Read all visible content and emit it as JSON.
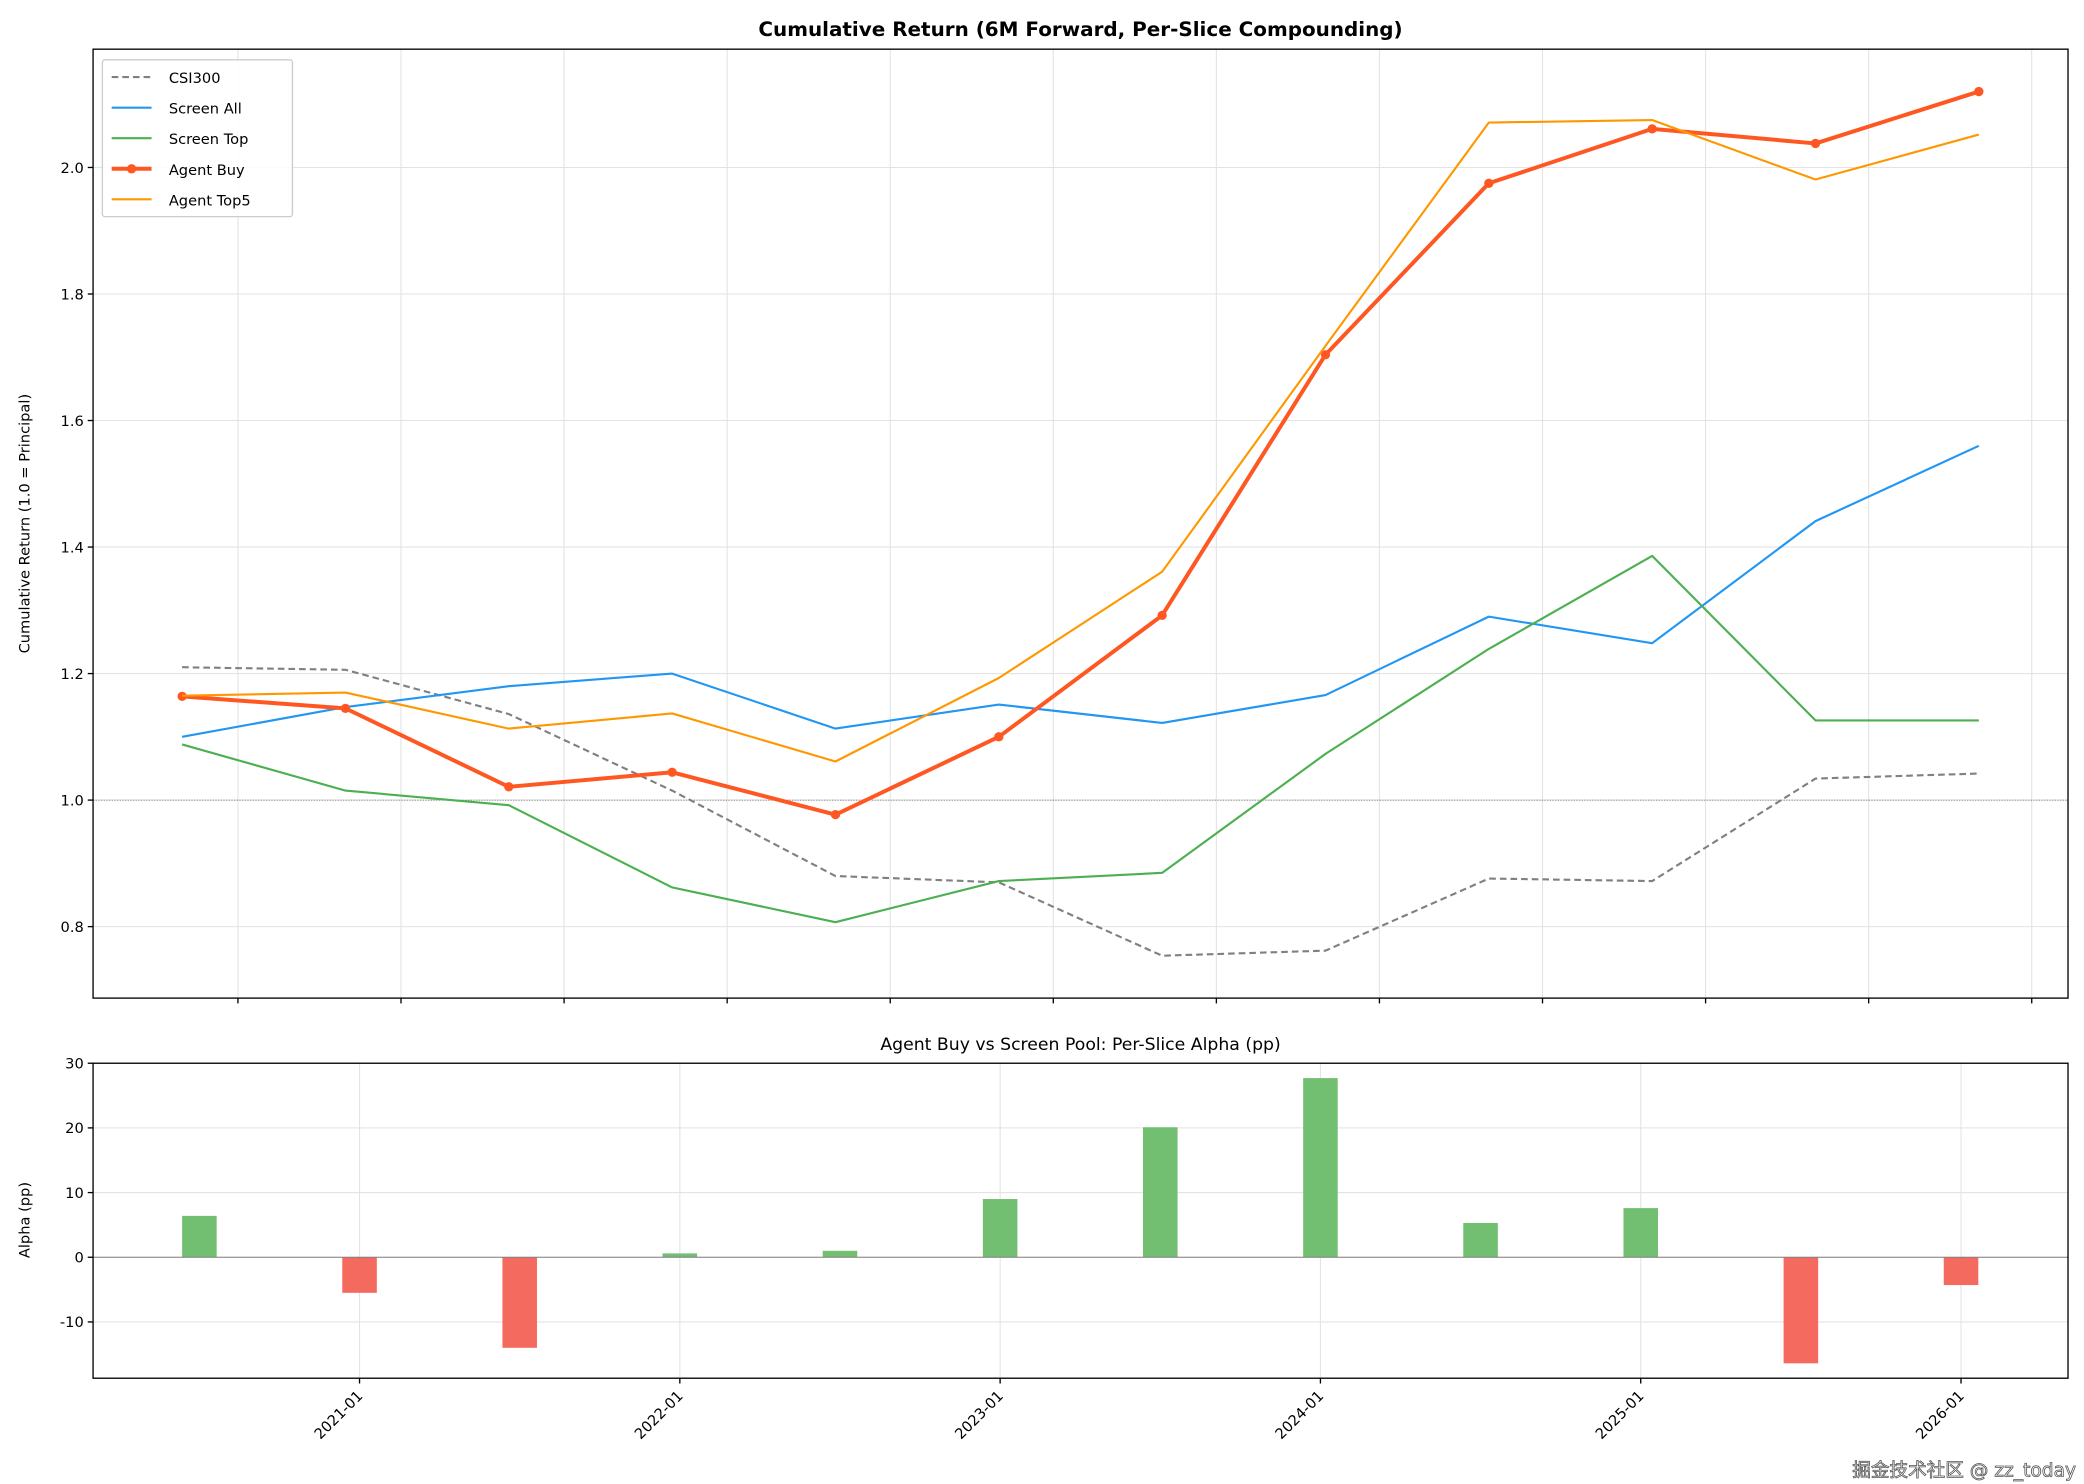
{
  "chart_data": [
    {
      "type": "line",
      "title": "Cumulative Return (6M Forward, Per-Slice Compounding)",
      "xlabel": "",
      "ylabel": "Cumulative Return (1.0 = Principal)",
      "x": [
        "2020-07",
        "2021-01",
        "2021-07",
        "2022-01",
        "2022-07",
        "2023-01",
        "2023-07",
        "2024-01",
        "2024-07",
        "2025-01",
        "2025-07",
        "2026-01"
      ],
      "ylim": [
        0.687,
        2.187
      ],
      "yticks": [
        0.8,
        1.0,
        1.2,
        1.4,
        1.6,
        1.8,
        2.0
      ],
      "ytick_labels": [
        "0.8",
        "1.0",
        "1.2",
        "1.4",
        "1.6",
        "1.8",
        "2.0"
      ],
      "reference_line": 1.0,
      "grid": true,
      "legend_position": "top-left",
      "series": [
        {
          "name": "CSI300",
          "color": "#808080",
          "style": "dashed",
          "values": [
            1.21,
            1.206,
            1.136,
            1.015,
            0.88,
            0.87,
            0.754,
            0.762,
            0.876,
            0.872,
            1.034,
            1.042
          ]
        },
        {
          "name": "Screen All",
          "color": "#2196F3",
          "style": "solid",
          "values": [
            1.1,
            1.147,
            1.18,
            1.2,
            1.113,
            1.151,
            1.122,
            1.166,
            1.29,
            1.248,
            1.441,
            1.56
          ]
        },
        {
          "name": "Screen Top",
          "color": "#4CAF50",
          "style": "solid",
          "values": [
            1.088,
            1.015,
            0.992,
            0.862,
            0.807,
            0.872,
            0.885,
            1.073,
            1.239,
            1.386,
            1.126,
            1.126
          ]
        },
        {
          "name": "Agent Buy",
          "color": "#FF5722",
          "style": "solid-markers",
          "values": [
            1.164,
            1.145,
            1.021,
            1.044,
            0.977,
            1.1,
            1.292,
            1.704,
            1.975,
            2.061,
            2.038,
            2.12
          ]
        },
        {
          "name": "Agent Top5",
          "color": "#FF9800",
          "style": "solid",
          "values": [
            1.165,
            1.17,
            1.113,
            1.137,
            1.061,
            1.193,
            1.361,
            1.718,
            2.071,
            2.075,
            1.981,
            2.052
          ]
        }
      ]
    },
    {
      "type": "bar",
      "title": "Agent Buy vs Screen Pool: Per-Slice Alpha (pp)",
      "xlabel": "",
      "ylabel": "Alpha (pp)",
      "categories": [
        "2020-07",
        "2021-01",
        "2021-07",
        "2022-01",
        "2022-07",
        "2023-01",
        "2023-07",
        "2024-01",
        "2024-07",
        "2025-01",
        "2025-07",
        "2026-01"
      ],
      "values": [
        6.4,
        -5.5,
        -14.0,
        0.6,
        1.0,
        9.0,
        20.1,
        27.7,
        5.3,
        7.6,
        -16.4,
        -4.3
      ],
      "ylim": [
        -18.7,
        30
      ],
      "yticks": [
        -10,
        0,
        10,
        20,
        30
      ],
      "ytick_labels": [
        "-10",
        "0",
        "10",
        "20",
        "30"
      ],
      "xtick_labels": [
        "2021-01",
        "2022-01",
        "2023-01",
        "2024-01",
        "2025-01",
        "2026-01"
      ],
      "positive_color": "#72BF72",
      "negative_color": "#F56A5E",
      "grid": true
    }
  ],
  "watermark": "掘金技术社区 @ zz_today"
}
